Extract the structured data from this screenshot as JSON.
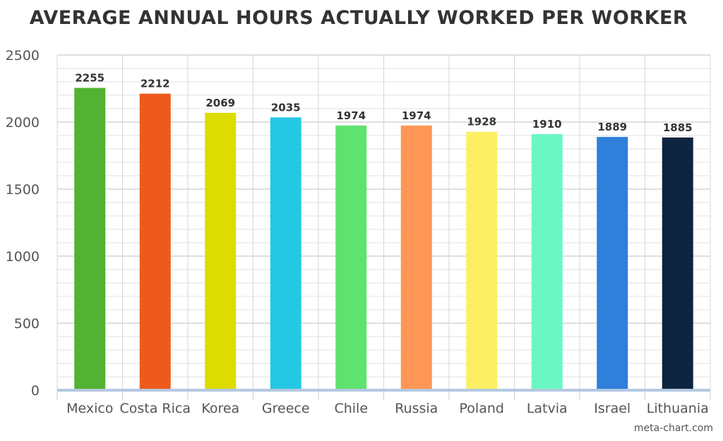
{
  "chart_data": {
    "type": "bar",
    "title": "AVERAGE ANNUAL HOURS ACTUALLY WORKED PER WORKER",
    "xlabel": "",
    "ylabel": "",
    "categories": [
      "Mexico",
      "Costa Rica",
      "Korea",
      "Greece",
      "Chile",
      "Russia",
      "Poland",
      "Latvia",
      "Israel",
      "Lithuania"
    ],
    "values": [
      2255,
      2212,
      2069,
      2035,
      1974,
      1974,
      1928,
      1910,
      1889,
      1885
    ],
    "colors": [
      "#52b232",
      "#ee5a1c",
      "#dcdc00",
      "#25c8e4",
      "#5fe26f",
      "#ff9655",
      "#fcef64",
      "#6af7c3",
      "#2f7fdb",
      "#0f2440"
    ],
    "ylim": [
      0,
      2500
    ],
    "yticks": [
      0,
      500,
      1000,
      1500,
      2000,
      2500
    ],
    "grid": true,
    "data_labels": true
  },
  "credit": "meta-chart.com"
}
